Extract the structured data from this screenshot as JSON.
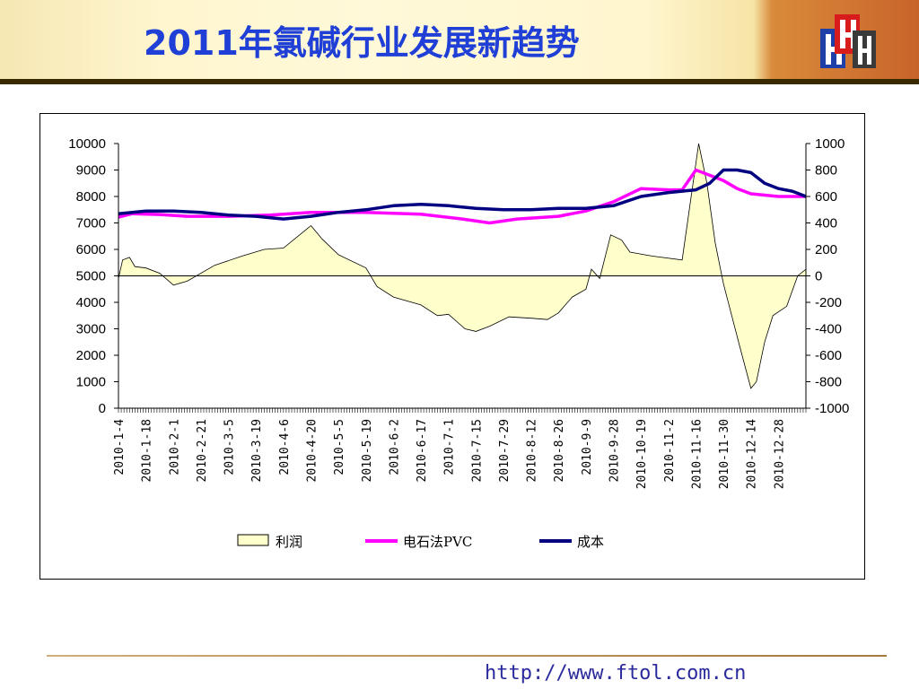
{
  "slide": {
    "title": "2011年氯碱行业发展新趋势",
    "footer_url": "http://www.ftol.com.cn",
    "logo_icon": "hh-logo-icon"
  },
  "chart_data": {
    "type": "line",
    "title": "",
    "x": [
      "2010-1-4",
      "2010-1-18",
      "2010-2-1",
      "2010-2-21",
      "2010-3-5",
      "2010-3-19",
      "2010-4-6",
      "2010-4-20",
      "2010-5-5",
      "2010-5-19",
      "2010-6-2",
      "2010-6-17",
      "2010-7-1",
      "2010-7-15",
      "2010-7-29",
      "2010-8-12",
      "2010-8-26",
      "2010-9-9",
      "2010-9-28",
      "2010-10-19",
      "2010-11-2",
      "2010-11-16",
      "2010-11-30",
      "2010-12-14",
      "2010-12-28"
    ],
    "left_axis": {
      "ylim": [
        0,
        10000
      ],
      "ticks": [
        "10000",
        "9000",
        "8000",
        "7000",
        "6000",
        "5000",
        "4000",
        "3000",
        "2000",
        "1000",
        "0"
      ]
    },
    "right_axis": {
      "ylim": [
        -1000,
        1000
      ],
      "ticks": [
        "1000",
        "800",
        "600",
        "400",
        "200",
        "0",
        "-200",
        "-400",
        "-600",
        "-800",
        "-1000"
      ]
    },
    "legend_position": "bottom",
    "series": [
      {
        "name": "利润",
        "axis": "right",
        "kind": "area",
        "color": "#ffffcc",
        "stroke": "#000000",
        "points": [
          [
            0,
            -20
          ],
          [
            0.15,
            120
          ],
          [
            0.4,
            140
          ],
          [
            0.6,
            70
          ],
          [
            1,
            60
          ],
          [
            1.5,
            20
          ],
          [
            2,
            -70
          ],
          [
            2.5,
            -40
          ],
          [
            3.5,
            80
          ],
          [
            4.5,
            150
          ],
          [
            5.3,
            200
          ],
          [
            6,
            210
          ],
          [
            7,
            380
          ],
          [
            7.4,
            280
          ],
          [
            8,
            160
          ],
          [
            9,
            60
          ],
          [
            9.4,
            -80
          ],
          [
            10,
            -160
          ],
          [
            11,
            -220
          ],
          [
            11.6,
            -300
          ],
          [
            12,
            -290
          ],
          [
            12.6,
            -400
          ],
          [
            13,
            -420
          ],
          [
            13.5,
            -380
          ],
          [
            14.2,
            -310
          ],
          [
            15,
            -320
          ],
          [
            15.6,
            -330
          ],
          [
            16,
            -280
          ],
          [
            16.5,
            -160
          ],
          [
            17,
            -100
          ],
          [
            17.2,
            50
          ],
          [
            17.5,
            -20
          ],
          [
            17.9,
            310
          ],
          [
            18.3,
            270
          ],
          [
            18.6,
            180
          ],
          [
            19.4,
            150
          ],
          [
            20.5,
            120
          ],
          [
            21.1,
            1000
          ],
          [
            21.4,
            700
          ],
          [
            21.7,
            250
          ],
          [
            22,
            -60
          ],
          [
            22.6,
            -540
          ],
          [
            23,
            -850
          ],
          [
            23.2,
            -800
          ],
          [
            23.5,
            -500
          ],
          [
            23.8,
            -300
          ],
          [
            24.3,
            -230
          ],
          [
            24.7,
            0
          ],
          [
            25,
            50
          ]
        ]
      },
      {
        "name": "电石法PVC",
        "axis": "left",
        "kind": "line",
        "color": "#ff00ff",
        "points": [
          [
            0,
            7220
          ],
          [
            0.5,
            7350
          ],
          [
            1.5,
            7320
          ],
          [
            2.5,
            7250
          ],
          [
            4,
            7250
          ],
          [
            5.5,
            7300
          ],
          [
            7,
            7400
          ],
          [
            9,
            7400
          ],
          [
            11,
            7330
          ],
          [
            12.5,
            7150
          ],
          [
            13.5,
            7000
          ],
          [
            14.5,
            7150
          ],
          [
            16,
            7250
          ],
          [
            17,
            7450
          ],
          [
            18,
            7800
          ],
          [
            19,
            8300
          ],
          [
            20,
            8250
          ],
          [
            20.5,
            8250
          ],
          [
            21,
            9000
          ],
          [
            21.5,
            8800
          ],
          [
            22,
            8600
          ],
          [
            22.5,
            8300
          ],
          [
            23,
            8100
          ],
          [
            24,
            8000
          ],
          [
            25,
            8000
          ]
        ]
      },
      {
        "name": "成本",
        "axis": "left",
        "kind": "line",
        "color": "#000080",
        "points": [
          [
            0,
            7350
          ],
          [
            1,
            7450
          ],
          [
            2,
            7450
          ],
          [
            3,
            7400
          ],
          [
            4,
            7300
          ],
          [
            5,
            7250
          ],
          [
            6,
            7150
          ],
          [
            7,
            7250
          ],
          [
            8,
            7400
          ],
          [
            9,
            7500
          ],
          [
            10,
            7650
          ],
          [
            11,
            7700
          ],
          [
            12,
            7650
          ],
          [
            13,
            7550
          ],
          [
            14,
            7500
          ],
          [
            15,
            7500
          ],
          [
            16,
            7550
          ],
          [
            17,
            7550
          ],
          [
            18,
            7650
          ],
          [
            19,
            8000
          ],
          [
            20,
            8150
          ],
          [
            21,
            8250
          ],
          [
            21.5,
            8500
          ],
          [
            22,
            9000
          ],
          [
            22.5,
            9000
          ],
          [
            23,
            8900
          ],
          [
            23.5,
            8500
          ],
          [
            24,
            8300
          ],
          [
            24.5,
            8200
          ],
          [
            25,
            8000
          ]
        ]
      }
    ]
  }
}
